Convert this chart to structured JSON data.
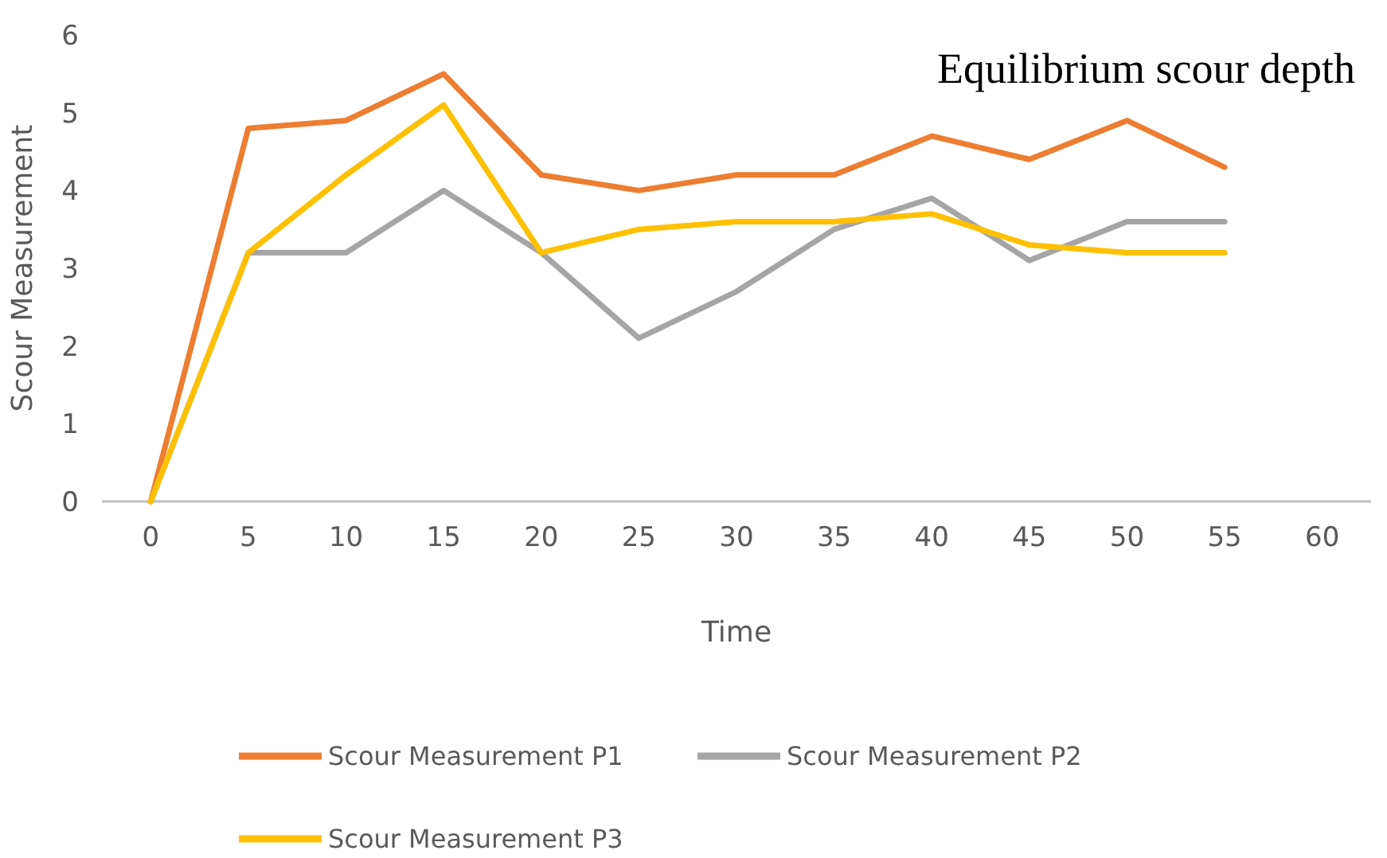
{
  "chart_data": {
    "type": "line",
    "title": "Equilibrium scour depth",
    "xlabel": "Time",
    "ylabel": "Scour Measurement",
    "categories": [
      "0",
      "5",
      "10",
      "15",
      "20",
      "25",
      "30",
      "35",
      "40",
      "45",
      "50",
      "55",
      "60"
    ],
    "series": [
      {
        "name": "Scour Measurement P1",
        "color": "#ed7d31",
        "values": [
          0,
          4.8,
          4.9,
          5.5,
          4.2,
          4.0,
          4.2,
          4.2,
          4.7,
          4.4,
          4.9,
          4.3,
          null
        ]
      },
      {
        "name": "Scour Measurement P2",
        "color": "#a5a5a5",
        "values": [
          0,
          3.2,
          3.2,
          4.0,
          3.2,
          2.1,
          2.7,
          3.5,
          3.9,
          3.1,
          3.6,
          3.6,
          null
        ]
      },
      {
        "name": "Scour Measurement P3",
        "color": "#ffc000",
        "values": [
          0,
          3.2,
          4.2,
          5.1,
          3.2,
          3.5,
          3.6,
          3.6,
          3.7,
          3.3,
          3.2,
          3.2,
          null
        ]
      }
    ],
    "ylim": [
      0,
      6
    ],
    "yticks": [
      0,
      1,
      2,
      3,
      4,
      5,
      6
    ],
    "grid": false,
    "legend": "bottom",
    "marker": "none",
    "line_style": "solid"
  }
}
